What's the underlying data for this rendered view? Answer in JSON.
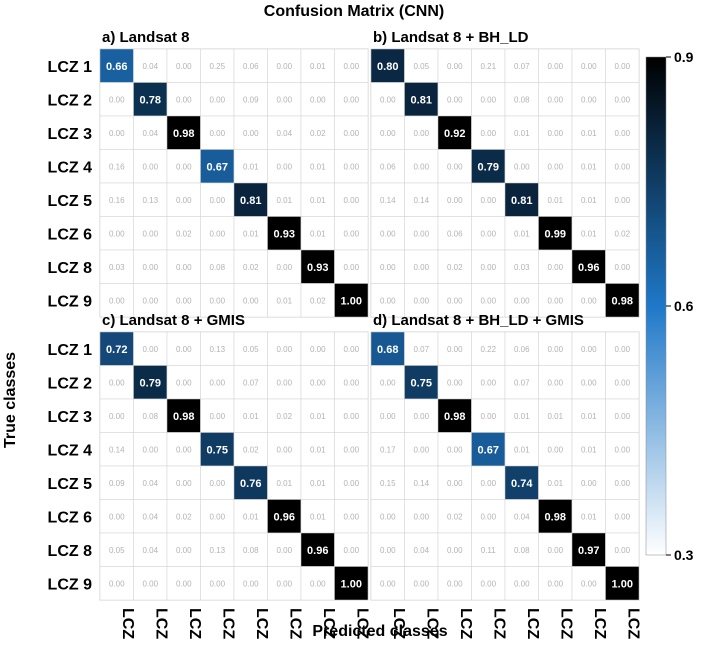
{
  "colors": {
    "low": "#ffffff",
    "mid": "#1f78c8",
    "high": "#000000",
    "grid": "#d0d0d0",
    "small_text": "#b3b3b3"
  },
  "chart_data": {
    "type": "heatmap",
    "title": "Confusion Matrix (CNN)",
    "xlabel": "Predicted classes",
    "ylabel": "True classes",
    "classes": [
      "LCZ 1",
      "LCZ 2",
      "LCZ 3",
      "LCZ 4",
      "LCZ 5",
      "LCZ 6",
      "LCZ 8",
      "LCZ 9"
    ],
    "colorbar": {
      "min": 0.3,
      "max": 0.9,
      "ticks": [
        "0.9",
        "0.6",
        "0.3"
      ]
    },
    "panels": [
      {
        "title": "a) Landsat 8",
        "matrix": [
          [
            "0.66",
            "0.04",
            "0.00",
            "0.25",
            "0.06",
            "0.00",
            "0.01",
            "0.00"
          ],
          [
            "0.00",
            "0.78",
            "0.00",
            "0.00",
            "0.09",
            "0.00",
            "0.00",
            "0.00"
          ],
          [
            "0.00",
            "0.04",
            "0.98",
            "0.00",
            "0.00",
            "0.04",
            "0.02",
            "0.00"
          ],
          [
            "0.16",
            "0.00",
            "0.00",
            "0.67",
            "0.01",
            "0.00",
            "0.01",
            "0.00"
          ],
          [
            "0.16",
            "0.13",
            "0.00",
            "0.00",
            "0.81",
            "0.01",
            "0.01",
            "0.00"
          ],
          [
            "0.00",
            "0.00",
            "0.02",
            "0.00",
            "0.01",
            "0.93",
            "0.01",
            "0.00"
          ],
          [
            "0.03",
            "0.00",
            "0.00",
            "0.08",
            "0.02",
            "0.00",
            "0.93",
            "0.00"
          ],
          [
            "0.00",
            "0.00",
            "0.00",
            "0.00",
            "0.00",
            "0.01",
            "0.02",
            "1.00"
          ]
        ]
      },
      {
        "title": "b) Landsat 8 + BH_LD",
        "matrix": [
          [
            "0.80",
            "0.05",
            "0.00",
            "0.21",
            "0.07",
            "0.00",
            "0.00",
            "0.00"
          ],
          [
            "0.00",
            "0.81",
            "0.00",
            "0.00",
            "0.08",
            "0.00",
            "0.00",
            "0.00"
          ],
          [
            "0.00",
            "0.00",
            "0.92",
            "0.00",
            "0.01",
            "0.00",
            "0.01",
            "0.00"
          ],
          [
            "0.06",
            "0.00",
            "0.00",
            "0.79",
            "0.00",
            "0.00",
            "0.01",
            "0.00"
          ],
          [
            "0.14",
            "0.14",
            "0.00",
            "0.00",
            "0.81",
            "0.01",
            "0.01",
            "0.00"
          ],
          [
            "0.00",
            "0.00",
            "0.06",
            "0.00",
            "0.01",
            "0.99",
            "0.01",
            "0.02"
          ],
          [
            "0.00",
            "0.00",
            "0.02",
            "0.00",
            "0.03",
            "0.00",
            "0.96",
            "0.00"
          ],
          [
            "0.00",
            "0.00",
            "0.00",
            "0.00",
            "0.00",
            "0.00",
            "0.00",
            "0.98"
          ]
        ]
      },
      {
        "title": "c) Landsat 8 + GMIS",
        "matrix": [
          [
            "0.72",
            "0.00",
            "0.00",
            "0.13",
            "0.05",
            "0.00",
            "0.00",
            "0.00"
          ],
          [
            "0.00",
            "0.79",
            "0.00",
            "0.00",
            "0.07",
            "0.00",
            "0.00",
            "0.00"
          ],
          [
            "0.00",
            "0.08",
            "0.98",
            "0.00",
            "0.01",
            "0.02",
            "0.01",
            "0.00"
          ],
          [
            "0.14",
            "0.00",
            "0.00",
            "0.75",
            "0.02",
            "0.00",
            "0.01",
            "0.00"
          ],
          [
            "0.09",
            "0.04",
            "0.00",
            "0.00",
            "0.76",
            "0.01",
            "0.01",
            "0.00"
          ],
          [
            "0.00",
            "0.04",
            "0.02",
            "0.00",
            "0.01",
            "0.96",
            "0.01",
            "0.00"
          ],
          [
            "0.05",
            "0.04",
            "0.00",
            "0.13",
            "0.08",
            "0.00",
            "0.96",
            "0.00"
          ],
          [
            "0.00",
            "0.00",
            "0.00",
            "0.00",
            "0.00",
            "0.00",
            "0.00",
            "1.00"
          ]
        ]
      },
      {
        "title": "d) Landsat 8 + BH_LD + GMIS",
        "matrix": [
          [
            "0.68",
            "0.07",
            "0.00",
            "0.22",
            "0.06",
            "0.00",
            "0.00",
            "0.00"
          ],
          [
            "0.00",
            "0.75",
            "0.00",
            "0.00",
            "0.07",
            "0.00",
            "0.00",
            "0.00"
          ],
          [
            "0.00",
            "0.00",
            "0.98",
            "0.00",
            "0.01",
            "0.01",
            "0.01",
            "0.00"
          ],
          [
            "0.17",
            "0.00",
            "0.00",
            "0.67",
            "0.01",
            "0.00",
            "0.01",
            "0.00"
          ],
          [
            "0.15",
            "0.14",
            "0.00",
            "0.00",
            "0.74",
            "0.01",
            "0.00",
            "0.00"
          ],
          [
            "0.00",
            "0.00",
            "0.02",
            "0.00",
            "0.04",
            "0.98",
            "0.01",
            "0.00"
          ],
          [
            "0.00",
            "0.04",
            "0.00",
            "0.11",
            "0.08",
            "0.00",
            "0.97",
            "0.00"
          ],
          [
            "0.00",
            "0.00",
            "0.00",
            "0.00",
            "0.00",
            "0.00",
            "0.00",
            "1.00"
          ]
        ]
      }
    ]
  }
}
